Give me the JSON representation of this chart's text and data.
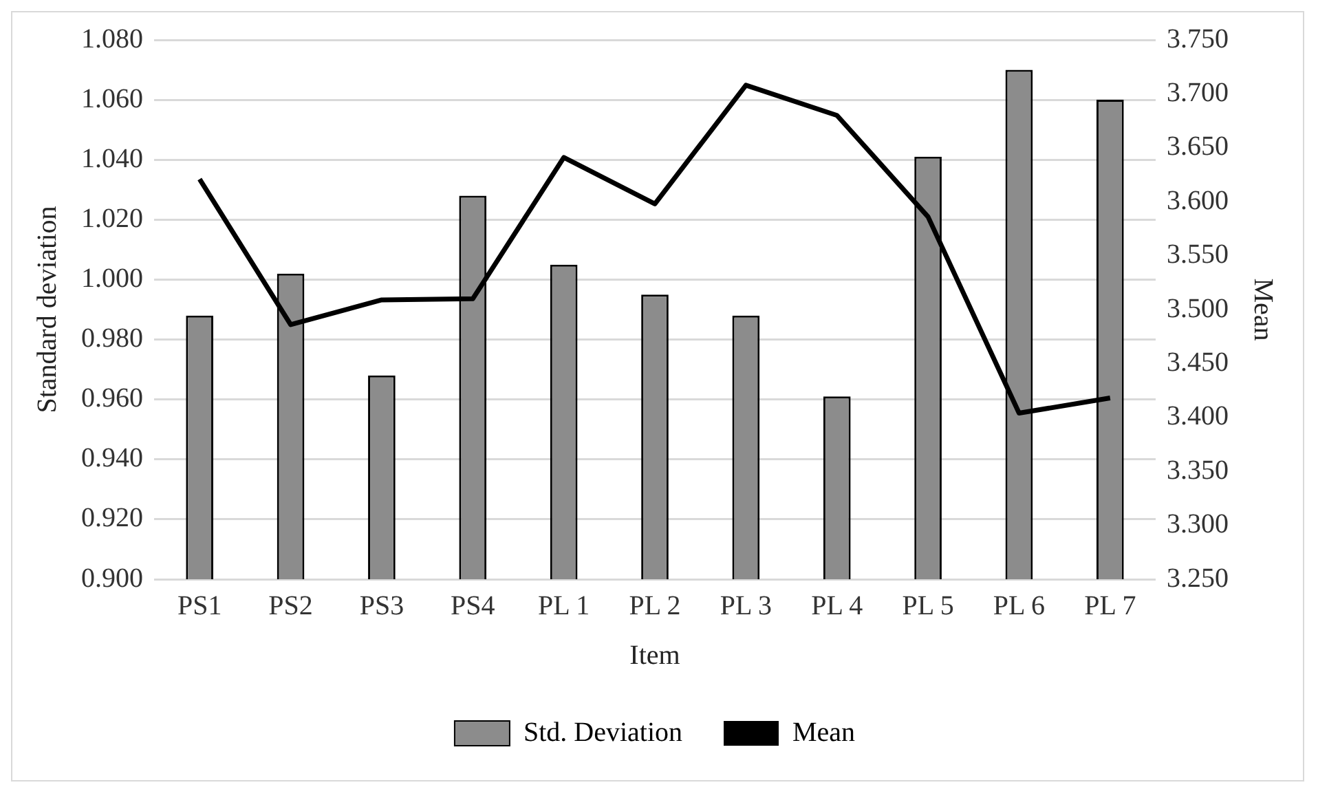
{
  "chart_data": {
    "type": "bar",
    "categories": [
      "PS1",
      "PS2",
      "PS3",
      "PS4",
      "PL 1",
      "PL 2",
      "PL 3",
      "PL 4",
      "PL 5",
      "PL 6",
      "PL 7"
    ],
    "series": [
      {
        "name": "Std. Deviation",
        "color": "#8c8c8c",
        "values": [
          0.988,
          1.002,
          0.968,
          1.028,
          1.005,
          0.995,
          0.988,
          0.961,
          1.041,
          1.07,
          1.06
        ]
      },
      {
        "name": "Mean",
        "type": "line",
        "axis": "y2",
        "color": "#000000",
        "values": [
          3.621,
          3.486,
          3.509,
          3.51,
          3.641,
          3.598,
          3.708,
          3.68,
          3.586,
          3.404,
          3.418
        ]
      }
    ],
    "xlabel": "Item",
    "ylabel": "Standard deviation",
    "y2label": "Mean",
    "ylim": [
      0.9,
      1.08
    ],
    "yticks": [
      {
        "value": 0.9,
        "label": "0.900"
      },
      {
        "value": 0.92,
        "label": "0.920"
      },
      {
        "value": 0.94,
        "label": "0.940"
      },
      {
        "value": 0.96,
        "label": "0.960"
      },
      {
        "value": 0.98,
        "label": "0.980"
      },
      {
        "value": 1.0,
        "label": "1.000"
      },
      {
        "value": 1.02,
        "label": "1.020"
      },
      {
        "value": 1.04,
        "label": "1.040"
      },
      {
        "value": 1.06,
        "label": "1.060"
      },
      {
        "value": 1.08,
        "label": "1.080"
      }
    ],
    "y2lim": [
      3.25,
      3.75
    ],
    "y2ticks": [
      {
        "value": 3.25,
        "label": "3.250"
      },
      {
        "value": 3.3,
        "label": "3.300"
      },
      {
        "value": 3.35,
        "label": "3.350"
      },
      {
        "value": 3.4,
        "label": "3.400"
      },
      {
        "value": 3.45,
        "label": "3.450"
      },
      {
        "value": 3.5,
        "label": "3.500"
      },
      {
        "value": 3.55,
        "label": "3.550"
      },
      {
        "value": 3.6,
        "label": "3.600"
      },
      {
        "value": 3.65,
        "label": "3.650"
      },
      {
        "value": 3.7,
        "label": "3.700"
      },
      {
        "value": 3.75,
        "label": "3.750"
      }
    ],
    "grid": "y",
    "legend": "bottom",
    "marker": "none",
    "line_style": "solid"
  }
}
